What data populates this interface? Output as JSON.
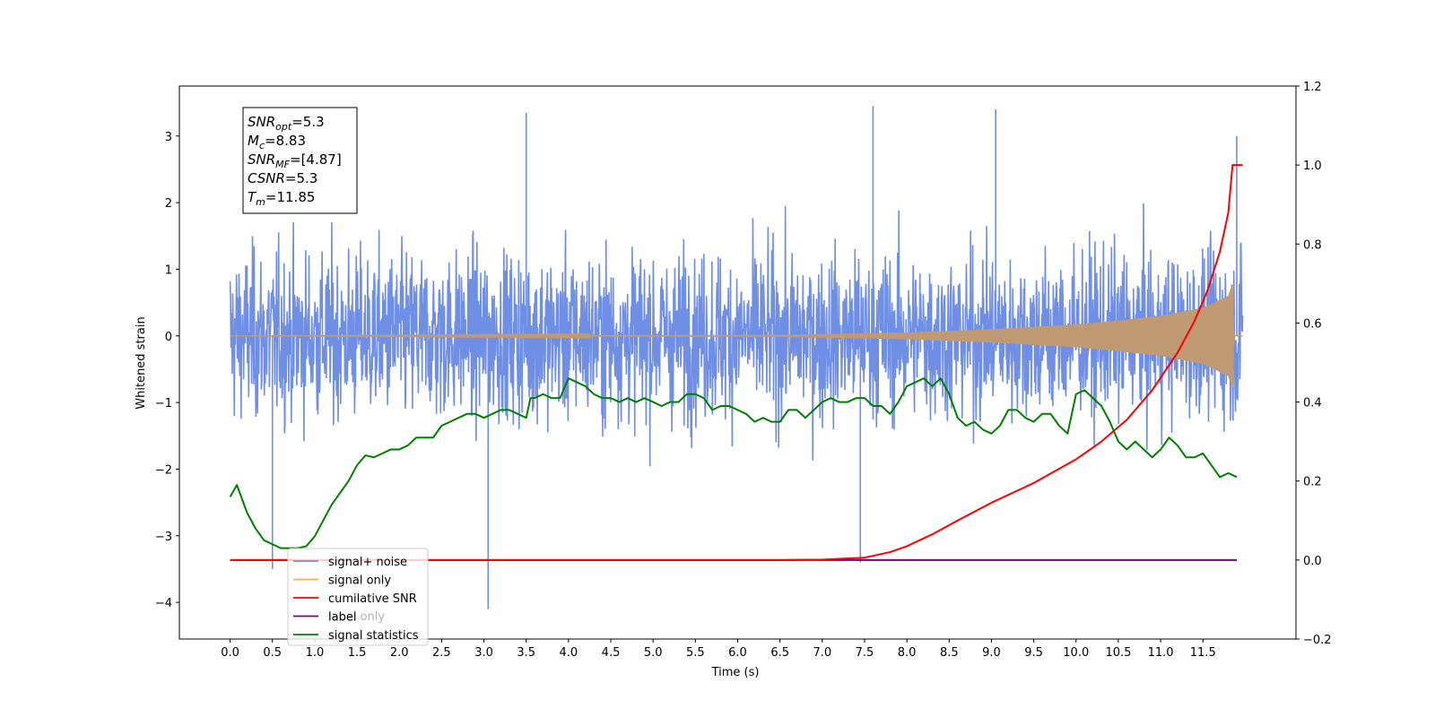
{
  "chart_data": {
    "type": "line",
    "xlabel": "Time (s)",
    "ylabel": "Whitened strain",
    "ylabel_right": "",
    "xlim": [
      -0.6,
      12.6
    ],
    "ylim": [
      -4.55,
      3.75
    ],
    "ylim_right": [
      -0.2,
      1.2
    ],
    "xticks": [
      0.0,
      0.5,
      1.0,
      1.5,
      2.0,
      2.5,
      3.0,
      3.5,
      4.0,
      4.5,
      5.0,
      5.5,
      6.0,
      6.5,
      7.0,
      7.5,
      8.0,
      8.5,
      9.0,
      9.5,
      10.0,
      10.5,
      11.0,
      11.5
    ],
    "xtick_labels": [
      "0.0",
      "0.5",
      "1.0",
      "1.5",
      "2.0",
      "2.5",
      "3.0",
      "3.5",
      "4.0",
      "4.5",
      "5.0",
      "5.5",
      "6.0",
      "6.5",
      "7.0",
      "7.5",
      "8.0",
      "8.5",
      "9.0",
      "9.5",
      "10.0",
      "10.5",
      "11.0",
      "11.5"
    ],
    "yticks_left": [
      -4,
      -3,
      -2,
      -1,
      0,
      1,
      2,
      3
    ],
    "ytick_labels_left": [
      "−4",
      "−3",
      "−2",
      "−1",
      "0",
      "1",
      "2",
      "3"
    ],
    "yticks_right": [
      -0.2,
      0.0,
      0.2,
      0.4,
      0.6,
      0.8,
      1.0,
      1.2
    ],
    "ytick_labels_right": [
      "−0.2",
      "0.0",
      "0.2",
      "0.4",
      "0.6",
      "0.8",
      "1.0",
      "1.2"
    ],
    "grid": false,
    "legend_location": "lower-left",
    "annotation_box": [
      {
        "base": "SNR",
        "sub": "opt",
        "value": "=5.3"
      },
      {
        "base": "M",
        "sub": "c",
        "value": "=8.83"
      },
      {
        "base": "SNR",
        "sub": "MF",
        "value": "=[4.87]"
      },
      {
        "base": "CSNR",
        "sub": "",
        "value": "=5.3"
      },
      {
        "base": "T",
        "sub": "m",
        "value": "=11.85"
      }
    ],
    "series": [
      {
        "name": "signal+ noise",
        "axis": "left",
        "color": "#6f8ee6",
        "style": "noise envelope",
        "x_range": [
          0.0,
          11.97
        ],
        "typical_range": [
          -1.7,
          1.7
        ],
        "max": 3.45,
        "min": -4.1,
        "notable_peaks": [
          [
            0.5,
            -3.5
          ],
          [
            3.05,
            -4.1
          ],
          [
            3.5,
            3.35
          ],
          [
            7.6,
            3.45
          ],
          [
            9.05,
            3.4
          ],
          [
            7.45,
            -3.4
          ],
          [
            11.9,
            3.0
          ]
        ]
      },
      {
        "name": "signal only",
        "axis": "left",
        "color": "#f5b041",
        "style": "chirp",
        "x_range": [
          0.0,
          11.97
        ],
        "amplitude_points": [
          [
            0.0,
            0.0
          ],
          [
            6.5,
            0.015
          ],
          [
            8.0,
            0.05
          ],
          [
            9.0,
            0.1
          ],
          [
            10.0,
            0.17
          ],
          [
            10.5,
            0.23
          ],
          [
            11.0,
            0.3
          ],
          [
            11.5,
            0.42
          ],
          [
            11.8,
            0.6
          ],
          [
            11.85,
            0.78
          ],
          [
            11.87,
            0.0
          ],
          [
            11.97,
            0.0
          ]
        ]
      },
      {
        "name": "cumilative SNR",
        "axis": "right",
        "color": "#ff0000",
        "x": [
          0.0,
          6.5,
          7.0,
          7.5,
          7.8,
          8.0,
          8.3,
          8.6,
          9.0,
          9.5,
          10.0,
          10.3,
          10.6,
          10.9,
          11.2,
          11.4,
          11.55,
          11.7,
          11.8,
          11.85,
          11.97
        ],
        "y": [
          0.0,
          0.0,
          0.001,
          0.006,
          0.02,
          0.035,
          0.065,
          0.1,
          0.145,
          0.195,
          0.255,
          0.3,
          0.355,
          0.43,
          0.525,
          0.605,
          0.68,
          0.78,
          0.88,
          1.0,
          1.0
        ]
      },
      {
        "name": "label only",
        "axis": "right",
        "color": "#f5b041",
        "hidden_in_plot": true,
        "x": [
          0.0,
          11.9
        ],
        "y": [
          0.0,
          0.0
        ]
      },
      {
        "name": "label",
        "axis": "right",
        "color": "#6a0d6a",
        "x": [
          0.0,
          11.9
        ],
        "y": [
          0.0,
          0.0
        ]
      },
      {
        "name": "signal statistics",
        "axis": "right",
        "color": "#008000",
        "x": [
          0.0,
          0.08,
          0.2,
          0.3,
          0.4,
          0.5,
          0.6,
          0.7,
          0.8,
          0.9,
          1.0,
          1.1,
          1.2,
          1.3,
          1.4,
          1.5,
          1.6,
          1.7,
          1.8,
          1.9,
          2.0,
          2.1,
          2.2,
          2.3,
          2.4,
          2.5,
          2.6,
          2.7,
          2.8,
          2.9,
          3.0,
          3.1,
          3.2,
          3.3,
          3.4,
          3.5,
          3.55,
          3.6,
          3.7,
          3.8,
          3.9,
          4.0,
          4.1,
          4.2,
          4.3,
          4.4,
          4.5,
          4.6,
          4.7,
          4.8,
          4.9,
          5.0,
          5.1,
          5.2,
          5.3,
          5.4,
          5.5,
          5.6,
          5.7,
          5.8,
          5.9,
          6.0,
          6.1,
          6.2,
          6.3,
          6.4,
          6.5,
          6.6,
          6.7,
          6.8,
          6.9,
          7.0,
          7.1,
          7.2,
          7.3,
          7.4,
          7.5,
          7.6,
          7.7,
          7.8,
          7.9,
          8.0,
          8.1,
          8.2,
          8.3,
          8.4,
          8.5,
          8.6,
          8.7,
          8.8,
          8.9,
          9.0,
          9.1,
          9.2,
          9.3,
          9.4,
          9.5,
          9.6,
          9.7,
          9.8,
          9.9,
          10.0,
          10.1,
          10.2,
          10.3,
          10.4,
          10.5,
          10.6,
          10.7,
          10.8,
          10.9,
          11.0,
          11.1,
          11.2,
          11.3,
          11.4,
          11.5,
          11.6,
          11.7,
          11.8,
          11.9
        ],
        "y": [
          0.16,
          0.19,
          0.12,
          0.08,
          0.05,
          0.04,
          0.03,
          0.03,
          0.03,
          0.035,
          0.06,
          0.1,
          0.14,
          0.17,
          0.2,
          0.24,
          0.265,
          0.26,
          0.27,
          0.28,
          0.28,
          0.29,
          0.31,
          0.31,
          0.31,
          0.34,
          0.35,
          0.36,
          0.37,
          0.37,
          0.36,
          0.37,
          0.38,
          0.38,
          0.37,
          0.36,
          0.41,
          0.41,
          0.42,
          0.41,
          0.41,
          0.46,
          0.45,
          0.44,
          0.42,
          0.41,
          0.41,
          0.4,
          0.41,
          0.4,
          0.41,
          0.4,
          0.39,
          0.4,
          0.4,
          0.42,
          0.42,
          0.41,
          0.38,
          0.39,
          0.39,
          0.38,
          0.37,
          0.35,
          0.36,
          0.35,
          0.35,
          0.38,
          0.38,
          0.36,
          0.38,
          0.4,
          0.41,
          0.4,
          0.4,
          0.41,
          0.41,
          0.39,
          0.39,
          0.37,
          0.4,
          0.44,
          0.45,
          0.46,
          0.44,
          0.46,
          0.42,
          0.36,
          0.34,
          0.35,
          0.33,
          0.32,
          0.34,
          0.38,
          0.38,
          0.36,
          0.35,
          0.37,
          0.37,
          0.34,
          0.32,
          0.42,
          0.43,
          0.41,
          0.39,
          0.35,
          0.3,
          0.28,
          0.3,
          0.28,
          0.26,
          0.28,
          0.31,
          0.29,
          0.26,
          0.26,
          0.27,
          0.24,
          0.21,
          0.22,
          0.21
        ]
      }
    ]
  }
}
